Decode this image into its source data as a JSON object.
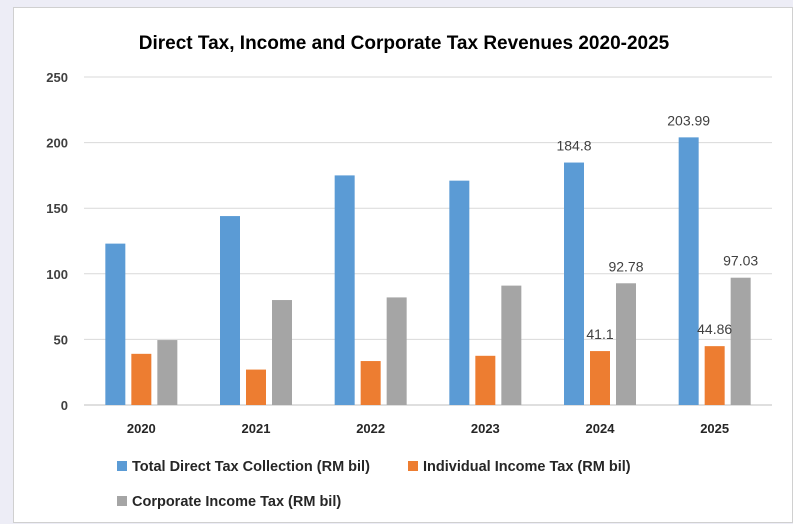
{
  "chart_data": {
    "type": "bar",
    "title": "Direct Tax, Income and Corporate Tax Revenues 2020-2025",
    "categories": [
      "2020",
      "2021",
      "2022",
      "2023",
      "2024",
      "2025"
    ],
    "ylim": [
      0,
      250
    ],
    "yticks": [
      0,
      50,
      100,
      150,
      200,
      250
    ],
    "grid": true,
    "legend_position": "bottom",
    "series": [
      {
        "name": "Total Direct Tax Collection (RM bil)",
        "color": "#5b9bd5",
        "values": [
          123,
          144,
          175,
          171,
          184.8,
          203.99
        ],
        "labels": [
          "",
          "",
          "",
          "",
          "184.8",
          "203.99"
        ]
      },
      {
        "name": "Individual Income Tax (RM bil)",
        "color": "#ed7d31",
        "values": [
          39,
          27,
          33.5,
          37.5,
          41.1,
          44.86
        ],
        "labels": [
          "",
          "",
          "",
          "",
          "41.1",
          "44.86"
        ]
      },
      {
        "name": "Corporate Income Tax (RM bil)",
        "color": "#a5a5a5",
        "values": [
          49.5,
          80,
          82,
          91,
          92.78,
          97.03
        ],
        "labels": [
          "",
          "",
          "",
          "",
          "92.78",
          "97.03"
        ]
      }
    ]
  }
}
